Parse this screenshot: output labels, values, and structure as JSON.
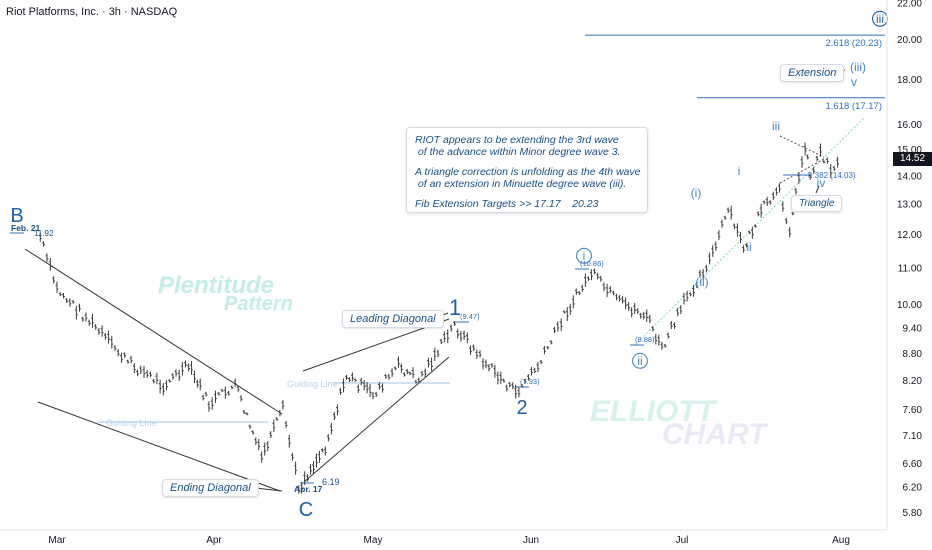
{
  "header": {
    "title": "Riot Platforms, Inc. · 3h · NASDAQ"
  },
  "note": {
    "lines": [
      "RIOT appears to be extending the 3rd wave",
      " of the advance within Minor degree wave 3.",
      "",
      "A triangle correction is unfolding as the 4th wave",
      " of an extension in Minuette degree wave (iii).",
      "",
      "Fib Extension Targets >> 17.17    20.23"
    ]
  },
  "pills": {
    "leading_diagonal": "Leading Diagonal",
    "ending_diagonal": "Ending Diagonal",
    "extension": "Extension",
    "triangle": "Triangle"
  },
  "watermarks": {
    "plentitude_1": "Plentitude",
    "plentitude_2": "Pattern",
    "elliott_1": "ELLIOTT",
    "elliott_2": "CHART",
    "guiding_1": "Guiding Line",
    "guiding_2": "Guiding Line"
  },
  "current_price": "14.52",
  "colors": {
    "wave_blue": "#1f5fa8",
    "light_blue": "#4a86c8",
    "fib_line": "#2f6fc2",
    "trend_line": "#333333",
    "guide_line": "#9ec5ee",
    "channel_line": "#7fd3d6",
    "bar": "#3a3a3a"
  },
  "chart_data": {
    "type": "ohlc",
    "symbol": "RIOT",
    "timeframe": "3h",
    "x_axis": {
      "labels": [
        "Mar",
        "Apr",
        "May",
        "Jun",
        "Jul",
        "Aug"
      ]
    },
    "y_axis": {
      "scale": "log",
      "range": [
        5.5,
        22.0
      ],
      "tick_labels": [
        "22.00",
        "20.00",
        "18.00",
        "16.00",
        "15.00",
        "14.00",
        "13.00",
        "12.00",
        "11.00",
        "10.00",
        "9.40",
        "8.80",
        "8.20",
        "7.60",
        "7.10",
        "6.60",
        "6.20",
        "5.80"
      ]
    },
    "price_path": [
      {
        "date": "Feb 21",
        "price": 11.92
      },
      {
        "date": "Mar 01",
        "price": 10.4
      },
      {
        "date": "Mar 08",
        "price": 9.5
      },
      {
        "date": "Mar 15",
        "price": 8.6
      },
      {
        "date": "Mar 22",
        "price": 8.1
      },
      {
        "date": "Mar 27",
        "price": 8.5
      },
      {
        "date": "Mar 31",
        "price": 7.7
      },
      {
        "date": "Apr 05",
        "price": 8.1
      },
      {
        "date": "Apr 10",
        "price": 6.7
      },
      {
        "date": "Apr 14",
        "price": 7.6
      },
      {
        "date": "Apr 17",
        "price": 6.19
      },
      {
        "date": "Apr 22",
        "price": 6.9
      },
      {
        "date": "Apr 26",
        "price": 8.3
      },
      {
        "date": "May 01",
        "price": 7.9
      },
      {
        "date": "May 06",
        "price": 8.5
      },
      {
        "date": "May 10",
        "price": 8.2
      },
      {
        "date": "May 15",
        "price": 9.1
      },
      {
        "date": "May 17",
        "price": 9.47
      },
      {
        "date": "May 22",
        "price": 8.7
      },
      {
        "date": "May 29",
        "price": 7.93
      },
      {
        "date": "Jun 03",
        "price": 8.6
      },
      {
        "date": "Jun 07",
        "price": 9.6
      },
      {
        "date": "Jun 13",
        "price": 10.86
      },
      {
        "date": "Jun 18",
        "price": 10.1
      },
      {
        "date": "Jun 24",
        "price": 9.7
      },
      {
        "date": "Jun 27",
        "price": 8.88
      },
      {
        "date": "Jul 02",
        "price": 10.2
      },
      {
        "date": "Jul 07",
        "price": 11.4
      },
      {
        "date": "Jul 10",
        "price": 12.8
      },
      {
        "date": "Jul 13",
        "price": 11.6
      },
      {
        "date": "Jul 17",
        "price": 12.9
      },
      {
        "date": "Jul 20",
        "price": 13.4
      },
      {
        "date": "Jul 22",
        "price": 12.2
      },
      {
        "date": "Jul 25",
        "price": 15.2
      },
      {
        "date": "Jul 26",
        "price": 14.03
      },
      {
        "date": "Jul 28",
        "price": 14.9
      },
      {
        "date": "Jul 30",
        "price": 14.3
      },
      {
        "date": "Aug 01",
        "price": 14.52
      }
    ],
    "fib_levels": [
      {
        "label": "2.618 (20.23)",
        "price": 20.23
      },
      {
        "label": "1.618 (17.17)",
        "price": 17.17
      },
      {
        "label": "0.382 (14.03)",
        "price": 14.03
      }
    ],
    "pivots": [
      {
        "label": "Feb. 21",
        "value": "11.92"
      },
      {
        "label": "Apr. 17",
        "value": "6.19"
      },
      {
        "label": "(9.47)"
      },
      {
        "label": "(7.93)"
      },
      {
        "label": "(10.86)"
      },
      {
        "label": "(8.88)"
      }
    ],
    "wave_labels": [
      "B",
      "C",
      "1",
      "2",
      "i",
      "ii",
      "(i)",
      "(ii)",
      "i",
      "ii",
      "iii",
      "iv",
      "v",
      "(iii)",
      "iii"
    ]
  }
}
